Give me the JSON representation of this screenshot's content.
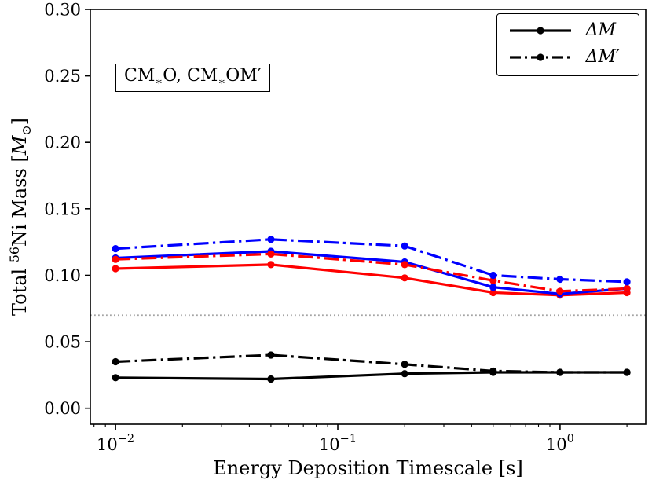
{
  "chart_data": {
    "type": "line",
    "title": "",
    "xlabel": "Energy Deposition Timescale [s]",
    "ylabel_parts": {
      "p1": "Total ",
      "iso": "56",
      "p2": "Ni Mass [",
      "sym": "M",
      "sun": "⊙",
      "p3": "]"
    },
    "xscale": "log",
    "grid": "off",
    "legend_position": "upper right",
    "xlim": [
      0.0077,
      2.43
    ],
    "ylim": [
      -0.012,
      0.3
    ],
    "x": [
      0.01,
      0.05,
      0.2,
      0.5,
      1.0,
      2.0
    ],
    "xticks": [
      {
        "v": 0.01,
        "base": "10",
        "exp": "−2"
      },
      {
        "v": 0.1,
        "base": "10",
        "exp": "−1"
      },
      {
        "v": 1.0,
        "base": "10",
        "exp": "0"
      }
    ],
    "yticks": [
      0,
      0.05,
      0.1,
      0.15,
      0.2,
      0.25,
      0.3
    ],
    "reference_line": {
      "y": 0.07,
      "color": "#a3a3a3",
      "style": "dotted"
    },
    "annotation_parts": {
      "p1": "CM",
      "s1": "∗",
      "p2": "O, CM",
      "s2": "∗",
      "p3": "OM′"
    },
    "legend": [
      {
        "label": "ΔM",
        "style": "solid"
      },
      {
        "label": "ΔM′",
        "style": "dashdot"
      }
    ],
    "series": [
      {
        "name": "black-solid",
        "color": "#000000",
        "style": "solid",
        "values": [
          0.023,
          0.022,
          0.026,
          0.027,
          0.027,
          0.027
        ]
      },
      {
        "name": "black-dashdot",
        "color": "#000000",
        "style": "dashdot",
        "values": [
          0.035,
          0.04,
          0.033,
          0.028,
          0.027,
          0.027
        ]
      },
      {
        "name": "red-solid",
        "color": "#ff0000",
        "style": "solid",
        "values": [
          0.105,
          0.108,
          0.098,
          0.087,
          0.085,
          0.087
        ]
      },
      {
        "name": "blue-solid",
        "color": "#0000ff",
        "style": "solid",
        "values": [
          0.113,
          0.118,
          0.11,
          0.091,
          0.086,
          0.09
        ]
      },
      {
        "name": "red-dashdot",
        "color": "#ff0000",
        "style": "dashdot",
        "values": [
          0.112,
          0.116,
          0.108,
          0.096,
          0.088,
          0.09
        ]
      },
      {
        "name": "blue-dashdot",
        "color": "#0000ff",
        "style": "dashdot",
        "values": [
          0.12,
          0.127,
          0.122,
          0.1,
          0.097,
          0.095
        ]
      }
    ]
  }
}
